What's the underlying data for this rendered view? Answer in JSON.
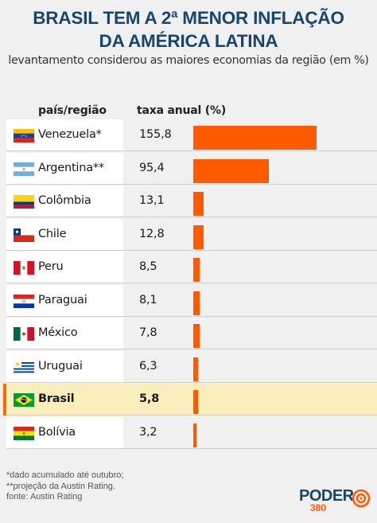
{
  "title_line1": "BRASIL TEM A 2ª MENOR INFLAÇÃO",
  "title_line2": "DA AMÉRICA LATINA",
  "subtitle": "levantamento considerou as maiores economias da região (em %)",
  "colors": {
    "title": "#16456f",
    "bar": "#ff5a00",
    "highlight_row": "#fbeebd"
  },
  "chart_data": {
    "type": "bar",
    "orientation": "horizontal",
    "column_headers": {
      "category": "país/região",
      "value": "taxa anual (%)"
    },
    "rows": [
      {
        "label": "Venezuela*",
        "value_text": "155,8",
        "value": 155.8,
        "flag": "venezuela-flag"
      },
      {
        "label": "Argentina**",
        "value_text": "95,4",
        "value": 95.4,
        "flag": "argentina-flag"
      },
      {
        "label": "Colômbia",
        "value_text": "13,1",
        "value": 13.1,
        "flag": "colombia-flag"
      },
      {
        "label": "Chile",
        "value_text": "12,8",
        "value": 12.8,
        "flag": "chile-flag"
      },
      {
        "label": "Peru",
        "value_text": "8,5",
        "value": 8.5,
        "flag": "peru-flag"
      },
      {
        "label": "Paraguai",
        "value_text": "8,1",
        "value": 8.1,
        "flag": "paraguay-flag"
      },
      {
        "label": "México",
        "value_text": "7,8",
        "value": 7.8,
        "flag": "mexico-flag"
      },
      {
        "label": "Uruguai",
        "value_text": "6,3",
        "value": 6.3,
        "flag": "uruguay-flag"
      },
      {
        "label": "Brasil",
        "value_text": "5,8",
        "value": 5.8,
        "flag": "brazil-flag",
        "highlight": true
      },
      {
        "label": "Bolívia",
        "value_text": "3,2",
        "value": 3.2,
        "flag": "bolivia-flag"
      }
    ]
  },
  "footnotes": [
    "*dado acumulado até outubro;",
    "**projeção da Austin Rating.",
    "fonte: Austin Rating"
  ],
  "logo": {
    "name": "PODER",
    "number": "380"
  }
}
